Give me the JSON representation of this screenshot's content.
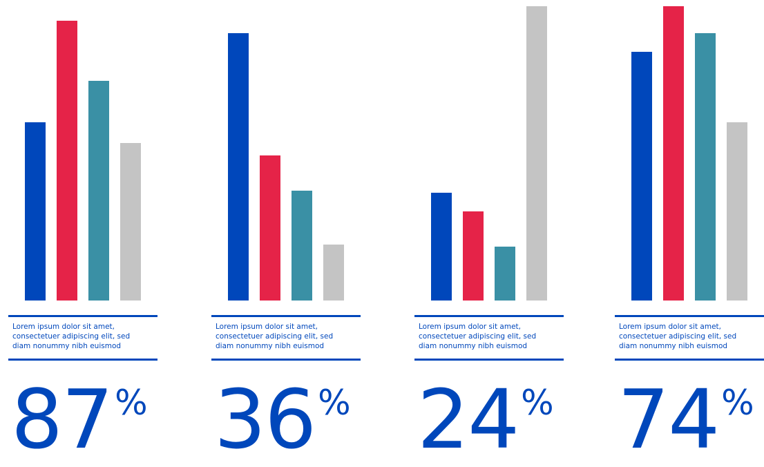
{
  "colors": {
    "accent": "#0047bb",
    "series": [
      "#0047bb",
      "#e52348",
      "#3a90a5",
      "#c4c4c4"
    ]
  },
  "chart_data": [
    {
      "type": "bar",
      "values": [
        86,
        135,
        106,
        76
      ],
      "ylim": [
        0,
        142
      ],
      "caption": "Lorem ipsum dolor sit amet,\nconsectetuer adipiscing elit, sed\ndiam nonummy nibh euismod",
      "big_value": "87",
      "big_unit": "%"
    },
    {
      "type": "bar",
      "values": [
        129,
        70,
        53,
        27
      ],
      "ylim": [
        0,
        142
      ],
      "caption": "Lorem ipsum dolor sit amet,\nconsectetuer adipiscing elit, sed\ndiam nonummy nibh euismod",
      "big_value": "36",
      "big_unit": "%"
    },
    {
      "type": "bar",
      "values": [
        52,
        43,
        26,
        142
      ],
      "ylim": [
        0,
        142
      ],
      "caption": "Lorem ipsum dolor sit amet,\nconsectetuer adipiscing elit, sed\ndiam nonummy nibh euismod",
      "big_value": "24",
      "big_unit": "%"
    },
    {
      "type": "bar",
      "values": [
        120,
        142,
        129,
        86
      ],
      "ylim": [
        0,
        142
      ],
      "caption": "Lorem ipsum dolor sit amet,\nconsectetuer adipiscing elit, sed\ndiam nonummy nibh euismod",
      "big_value": "74",
      "big_unit": "%"
    }
  ]
}
